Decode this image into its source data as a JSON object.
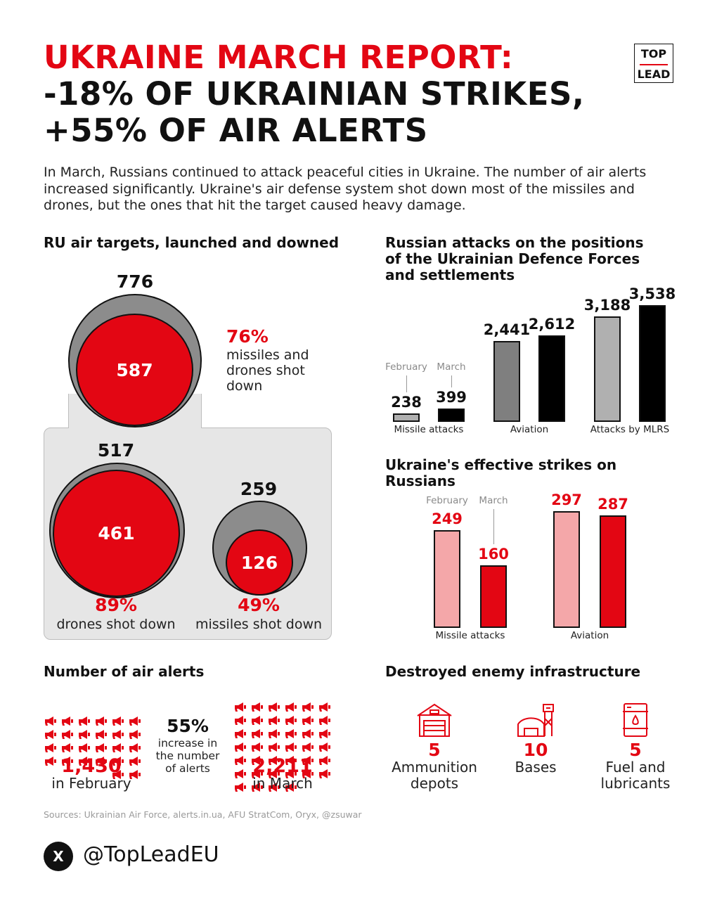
{
  "header": {
    "title_line1": "UKRAINE MARCH REPORT:",
    "title_line2": "-18% OF UKRAINIAN STRIKES,",
    "title_line3": "+55% OF AIR ALERTS",
    "logo_top": "TOP",
    "logo_bottom": "LEAD",
    "intro": "In March, Russians continued to attack peaceful cities in Ukraine. The number of air alerts increased significantly. Ukraine's air defense system shot down most of the missiles and drones, but the ones that hit the target caused heavy damage."
  },
  "colors": {
    "accent": "#e30613",
    "gray_dark": "#7f7f7f",
    "gray_light": "#b0b0b0",
    "pink": "#f4a7a9",
    "black": "#000000"
  },
  "air_targets": {
    "title": "RU air targets, launched and downed",
    "total": {
      "launched": "776",
      "downed": "587",
      "pct": "76%",
      "caption": "missiles and drones shot down"
    },
    "drones": {
      "launched": "517",
      "downed": "461",
      "pct": "89%",
      "caption": "drones shot down"
    },
    "missiles": {
      "launched": "259",
      "downed": "126",
      "pct": "49%",
      "caption": "missiles shot down"
    }
  },
  "chart_data": [
    {
      "type": "bar",
      "title": "Russian attacks on the positions of the Ukrainian Defence Forces and settlements",
      "categories": [
        "Missile attacks",
        "Aviation",
        "Attacks by MLRS"
      ],
      "series": [
        {
          "name": "February",
          "values": [
            238,
            2441,
            3188
          ]
        },
        {
          "name": "March",
          "values": [
            399,
            2612,
            3538
          ]
        }
      ],
      "labels": [
        [
          "238",
          "399"
        ],
        [
          "2,441",
          "2,612"
        ],
        [
          "3,188",
          "3,538"
        ]
      ]
    },
    {
      "type": "bar",
      "title": "Ukraine's effective strikes on Russians",
      "categories": [
        "Missile attacks",
        "Aviation"
      ],
      "series": [
        {
          "name": "February",
          "values": [
            249,
            297
          ]
        },
        {
          "name": "March",
          "values": [
            160,
            287
          ]
        }
      ],
      "labels": [
        [
          "249",
          "160"
        ],
        [
          "297",
          "287"
        ]
      ]
    }
  ],
  "air_alerts": {
    "title": "Number of air alerts",
    "february": {
      "value": "1,430",
      "caption": "in February",
      "icons": 26
    },
    "march": {
      "value": "2,211",
      "caption": "in March",
      "icons": 40
    },
    "increase_pct": "55%",
    "increase_text": "increase in the number of alerts",
    "icon": "megaphone-icon"
  },
  "infrastructure": {
    "title": "Destroyed enemy infrastructure",
    "items": [
      {
        "value": "5",
        "caption": "Ammunition depots",
        "icon": "warehouse-icon"
      },
      {
        "value": "10",
        "caption": "Bases",
        "icon": "military-base-icon"
      },
      {
        "value": "5",
        "caption": "Fuel and lubricants",
        "icon": "fuel-barrel-icon"
      }
    ]
  },
  "footer": {
    "sources": "Sources: Ukrainian Air Force, alerts.in.ua, AFU StratCom, Oryx, @zsuwar",
    "x_glyph": "X",
    "handle": "@TopLeadEU"
  }
}
